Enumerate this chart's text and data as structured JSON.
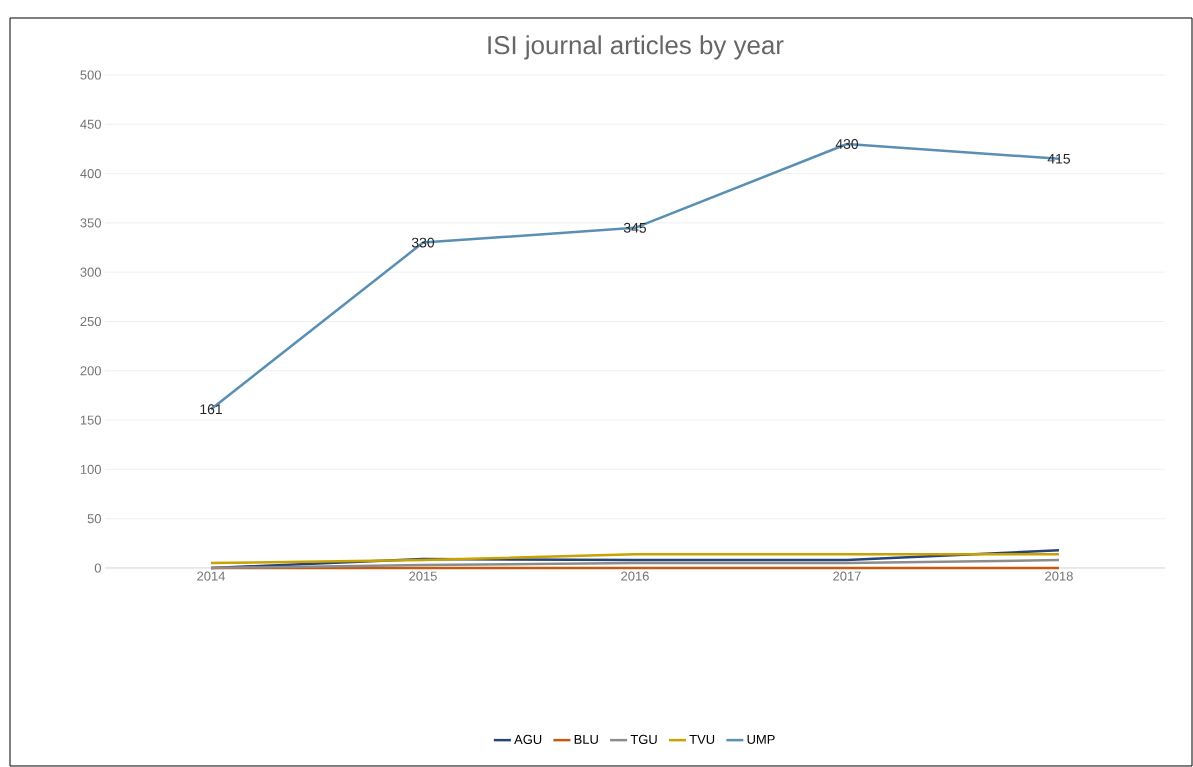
{
  "chart_data": {
    "type": "line",
    "title": "ISI journal articles by year",
    "categories": [
      "2014",
      "2015",
      "2016",
      "2017",
      "2018"
    ],
    "series": [
      {
        "name": "AGU",
        "color": "#264478",
        "values": [
          0,
          9,
          8,
          8,
          18
        ]
      },
      {
        "name": "BLU",
        "color": "#c55a11",
        "values": [
          0,
          0,
          0,
          0,
          0
        ]
      },
      {
        "name": "TGU",
        "color": "#8c8c8c",
        "values": [
          0,
          3,
          5,
          5,
          8
        ]
      },
      {
        "name": "TVU",
        "color": "#c9a200",
        "values": [
          5,
          8,
          14,
          14,
          14
        ]
      },
      {
        "name": "UMP",
        "color": "#5a8fb5",
        "values": [
          161,
          330,
          345,
          430,
          415
        ],
        "value_labels": [
          "161",
          "330",
          "345",
          "430",
          "415"
        ]
      }
    ],
    "ylim": [
      0,
      500
    ],
    "yticks": [
      0,
      50,
      100,
      150,
      200,
      250,
      300,
      350,
      400,
      450,
      500
    ],
    "grid": "y",
    "legend": "bottom",
    "line_style": "solid"
  }
}
